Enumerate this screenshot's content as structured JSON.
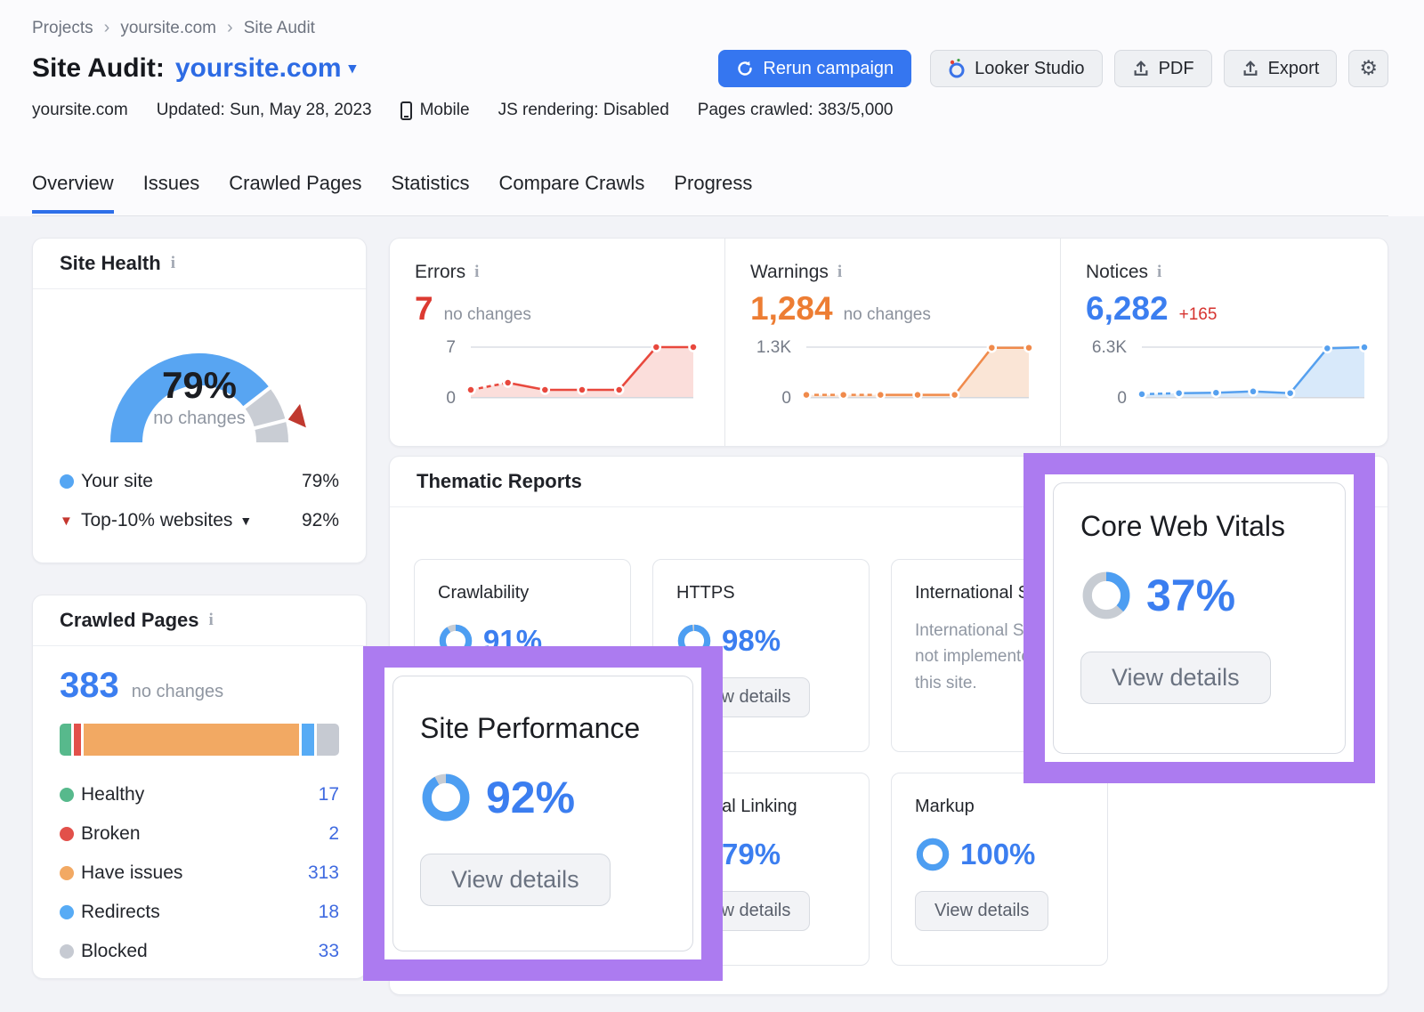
{
  "breadcrumb": {
    "items": [
      "Projects",
      "yoursite.com",
      "Site Audit"
    ]
  },
  "header": {
    "title_label": "Site Audit:",
    "title_value": "yoursite.com",
    "buttons": {
      "rerun": "Rerun campaign",
      "looker": "Looker Studio",
      "pdf": "PDF",
      "export": "Export"
    },
    "meta": {
      "domain": "yoursite.com",
      "updated": "Updated: Sun, May 28, 2023",
      "device": "Mobile",
      "js_rendering": "JS rendering: Disabled",
      "pages_crawled": "Pages crawled: 383/5,000"
    }
  },
  "tabs": {
    "items": [
      "Overview",
      "Issues",
      "Crawled Pages",
      "Statistics",
      "Compare Crawls",
      "Progress"
    ],
    "active": "Overview"
  },
  "site_health": {
    "title": "Site Health",
    "percent": 79,
    "percent_label": "79%",
    "change_label": "no changes",
    "marker_percent": 92,
    "arc_color": "#58a5f2",
    "rest_color": "#c9cdd4",
    "marker_color": "#c0392f",
    "legend": [
      {
        "label": "Your site",
        "value": "79%",
        "color": "#55a6f3"
      },
      {
        "label": "Top-10% websites",
        "value": "92%",
        "color": "#c5372f"
      }
    ]
  },
  "summary": [
    {
      "title": "Errors",
      "value": "7",
      "value_color": "#dc3a31",
      "change": "no changes",
      "change_color": "#8b919c",
      "chart": {
        "type": "area",
        "values": [
          1,
          2,
          1,
          1,
          1,
          7,
          7
        ],
        "max": 7,
        "top_label": "7",
        "zero_label": "0",
        "color": "#e8483d",
        "fill": "#fbdedb",
        "dashed_until": 1
      }
    },
    {
      "title": "Warnings",
      "value": "1,284",
      "value_color": "#ed7d33",
      "change": "no changes",
      "change_color": "#8b919c",
      "chart": {
        "type": "area",
        "values": [
          55,
          55,
          55,
          55,
          55,
          1284,
          1284
        ],
        "max": 1300,
        "top_label": "1.3K",
        "zero_label": "0",
        "color": "#f08a4b",
        "fill": "#fae5d6",
        "dashed_until": 2
      }
    },
    {
      "title": "Notices",
      "value": "6,282",
      "value_color": "#3b7ef0",
      "change": "+165",
      "change_color": "#d6332f",
      "chart": {
        "type": "area",
        "values": [
          350,
          480,
          540,
          700,
          480,
          6150,
          6282
        ],
        "max": 6300,
        "top_label": "6.3K",
        "zero_label": "0",
        "color": "#55a0ef",
        "fill": "#d8e9fa",
        "dashed_until": 1
      }
    }
  ],
  "crawled_pages": {
    "title": "Crawled Pages",
    "value": "383",
    "change_label": "no changes",
    "segments": [
      {
        "label": "Healthy",
        "count": 17,
        "display": "17",
        "color": "#57b98c"
      },
      {
        "label": "Broken",
        "count": 2,
        "display": "2",
        "color": "#e2504a"
      },
      {
        "label": "Have issues",
        "count": 313,
        "display": "313",
        "color": "#f2a963"
      },
      {
        "label": "Redirects",
        "count": 18,
        "display": "18",
        "color": "#57abf5"
      },
      {
        "label": "Blocked",
        "count": 33,
        "display": "33",
        "color": "#c6cad2"
      }
    ]
  },
  "thematic": {
    "title": "Thematic Reports",
    "view_details": "View details",
    "cards": [
      {
        "title": "Crawlability",
        "percent": 91,
        "percent_label": "91%"
      },
      {
        "title": "HTTPS",
        "percent": 98,
        "percent_label": "98%"
      },
      {
        "title": "International SEO",
        "desc": [
          "International SEO is",
          "not implemented on",
          "this site."
        ]
      },
      {
        "title": "Internal Linking",
        "percent": 79,
        "percent_label": "79%"
      },
      {
        "title": "Markup",
        "percent": 100,
        "percent_label": "100%"
      }
    ],
    "highlights": {
      "site_performance": {
        "title": "Site Performance",
        "percent": 92,
        "percent_label": "92%",
        "button": "View details"
      },
      "core_web_vitals": {
        "title": "Core Web Vitals",
        "percent": 37,
        "percent_label": "37%",
        "button": "View details"
      }
    },
    "highlight_color": "#ac7bf0"
  },
  "donut_colors": {
    "arc": "#4d9ef2",
    "rest": "#c7ccd3"
  }
}
